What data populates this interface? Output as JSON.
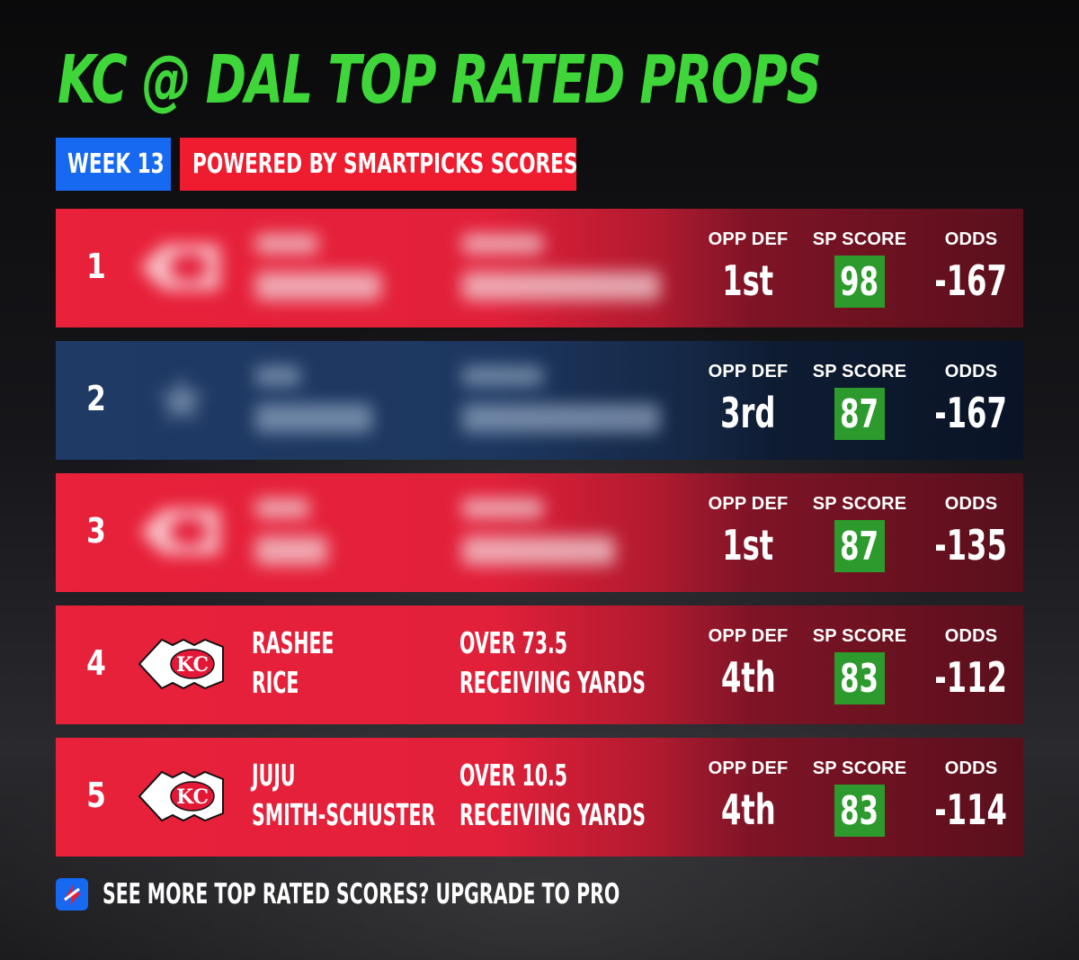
{
  "header": {
    "title": "KC @ DAL TOP RATED PROPS",
    "week_tag": "WEEK 13",
    "powered_tag": "POWERED BY SMARTPICKS SCORES"
  },
  "columns": {
    "opp_def": "OPP DEF",
    "sp_score": "SP SCORE",
    "odds": "ODDS"
  },
  "colors": {
    "title_green": "#3fd63a",
    "week_blue": "#1669f0",
    "powered_red": "#ee1c2e",
    "row_red": "#e9213a",
    "row_navy": "#1f3a65",
    "score_green": "#2c9a2d"
  },
  "rows": [
    {
      "rank": "1",
      "team_logo": "chiefs-logo",
      "blurred": true,
      "opp_def": "1st",
      "sp_score": "98",
      "odds": "-167"
    },
    {
      "rank": "2",
      "team_logo": "cowboys-logo",
      "blurred": true,
      "opp_def": "3rd",
      "sp_score": "87",
      "odds": "-167"
    },
    {
      "rank": "3",
      "team_logo": "chiefs-logo",
      "blurred": true,
      "opp_def": "1st",
      "sp_score": "87",
      "odds": "-135"
    },
    {
      "rank": "4",
      "team_logo": "chiefs-logo",
      "blurred": false,
      "player_first": "RASHEE",
      "player_last": "RICE",
      "prop_line": "OVER 73.5",
      "prop_type": "RECEIVING YARDS",
      "opp_def": "4th",
      "sp_score": "83",
      "odds": "-112"
    },
    {
      "rank": "5",
      "team_logo": "chiefs-logo",
      "blurred": false,
      "player_first": "JUJU",
      "player_last": "SMITH-SCHUSTER",
      "prop_line": "OVER 10.5",
      "prop_type": "RECEIVING YARDS",
      "opp_def": "4th",
      "sp_score": "83",
      "odds": "-114"
    }
  ],
  "footer": {
    "icon": "smartpicks-logo-icon",
    "text": "SEE MORE TOP RATED SCORES? UPGRADE TO PRO"
  }
}
